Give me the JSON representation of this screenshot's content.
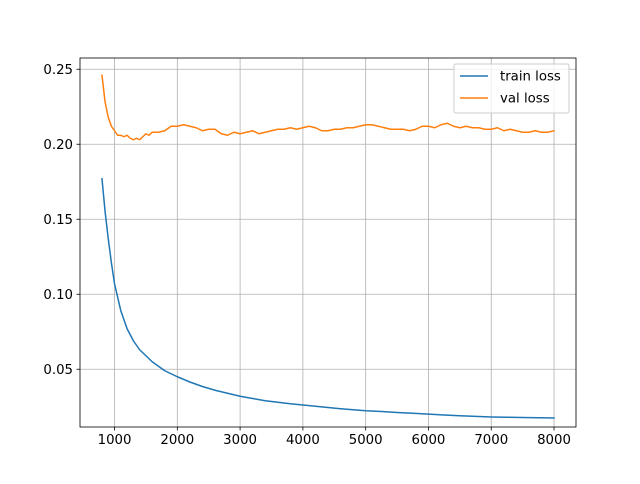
{
  "chart_data": {
    "type": "line",
    "title": "",
    "xlabel": "",
    "ylabel": "",
    "xlim": [
      450,
      8350
    ],
    "ylim": [
      0.0115,
      0.2575
    ],
    "xticks": [
      1000,
      2000,
      3000,
      4000,
      5000,
      6000,
      7000,
      8000
    ],
    "xtick_labels": [
      "1000",
      "2000",
      "3000",
      "4000",
      "5000",
      "6000",
      "7000",
      "8000"
    ],
    "yticks": [
      0.05,
      0.1,
      0.15,
      0.2,
      0.25
    ],
    "ytick_labels": [
      "0.05",
      "0.10",
      "0.15",
      "0.20",
      "0.25"
    ],
    "grid": true,
    "legend_position": "top-right",
    "series": [
      {
        "name": "train loss",
        "color": "#1f77b4",
        "x": [
          800,
          850,
          900,
          950,
          1000,
          1100,
          1200,
          1300,
          1400,
          1500,
          1600,
          1700,
          1800,
          1900,
          2000,
          2200,
          2400,
          2600,
          2800,
          3000,
          3200,
          3400,
          3600,
          3800,
          4000,
          4200,
          4400,
          4600,
          4800,
          5000,
          5250,
          5500,
          5750,
          6000,
          6250,
          6500,
          6750,
          7000,
          7250,
          7500,
          7750,
          8000
        ],
        "y": [
          0.177,
          0.155,
          0.137,
          0.121,
          0.107,
          0.089,
          0.077,
          0.069,
          0.063,
          0.059,
          0.055,
          0.052,
          0.049,
          0.047,
          0.045,
          0.0415,
          0.0385,
          0.036,
          0.034,
          0.032,
          0.0305,
          0.029,
          0.028,
          0.027,
          0.0262,
          0.0253,
          0.0245,
          0.0237,
          0.023,
          0.0223,
          0.0218,
          0.0212,
          0.0207,
          0.0201,
          0.0195,
          0.019,
          0.0186,
          0.0182,
          0.018,
          0.0178,
          0.0177,
          0.0175
        ]
      },
      {
        "name": "val loss",
        "color": "#ff7f0e",
        "x": [
          800,
          850,
          900,
          950,
          1000,
          1050,
          1100,
          1150,
          1200,
          1250,
          1300,
          1350,
          1400,
          1450,
          1500,
          1550,
          1600,
          1700,
          1800,
          1900,
          2000,
          2100,
          2200,
          2300,
          2400,
          2500,
          2600,
          2700,
          2800,
          2900,
          3000,
          3100,
          3200,
          3300,
          3400,
          3500,
          3600,
          3700,
          3800,
          3900,
          4000,
          4100,
          4200,
          4300,
          4400,
          4500,
          4600,
          4700,
          4800,
          4900,
          5000,
          5100,
          5200,
          5300,
          5400,
          5500,
          5600,
          5700,
          5800,
          5900,
          6000,
          6100,
          6200,
          6300,
          6400,
          6500,
          6600,
          6700,
          6800,
          6900,
          7000,
          7100,
          7200,
          7300,
          7400,
          7500,
          7600,
          7700,
          7800,
          7900,
          8000
        ],
        "y": [
          0.246,
          0.228,
          0.218,
          0.212,
          0.209,
          0.206,
          0.206,
          0.205,
          0.206,
          0.204,
          0.203,
          0.204,
          0.203,
          0.205,
          0.207,
          0.206,
          0.208,
          0.208,
          0.209,
          0.212,
          0.212,
          0.213,
          0.212,
          0.211,
          0.209,
          0.21,
          0.21,
          0.207,
          0.206,
          0.208,
          0.207,
          0.208,
          0.209,
          0.207,
          0.208,
          0.209,
          0.21,
          0.21,
          0.211,
          0.21,
          0.211,
          0.212,
          0.211,
          0.209,
          0.209,
          0.21,
          0.21,
          0.211,
          0.211,
          0.212,
          0.213,
          0.213,
          0.212,
          0.211,
          0.21,
          0.21,
          0.21,
          0.209,
          0.21,
          0.212,
          0.212,
          0.211,
          0.213,
          0.214,
          0.212,
          0.211,
          0.212,
          0.211,
          0.211,
          0.21,
          0.21,
          0.211,
          0.209,
          0.21,
          0.209,
          0.208,
          0.208,
          0.209,
          0.208,
          0.208,
          0.209
        ]
      }
    ]
  }
}
